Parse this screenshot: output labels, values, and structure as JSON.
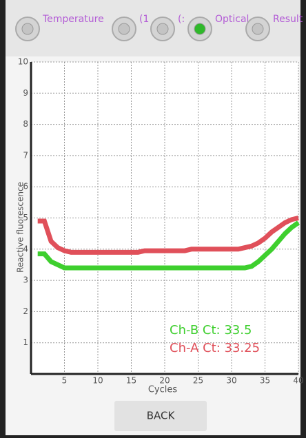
{
  "tabs": [
    {
      "label": "Temperature",
      "selected": false
    },
    {
      "label": "(1",
      "selected": false
    },
    {
      "label": "(:",
      "selected": false
    },
    {
      "label": "Optical",
      "selected": true
    },
    {
      "label": "Result",
      "selected": false
    }
  ],
  "chart_data": {
    "type": "line",
    "xlabel": "Cycles",
    "ylabel": "Reactive fluorescence",
    "x": [
      1,
      2,
      3,
      4,
      5,
      6,
      7,
      8,
      9,
      10,
      11,
      12,
      13,
      14,
      15,
      16,
      17,
      18,
      19,
      20,
      21,
      22,
      23,
      24,
      25,
      26,
      27,
      28,
      29,
      30,
      31,
      32,
      33,
      34,
      35,
      36,
      37,
      38,
      39,
      40
    ],
    "series": [
      {
        "color": "#e0505a",
        "values": [
          4.9,
          4.9,
          4.25,
          4.05,
          3.95,
          3.9,
          3.9,
          3.9,
          3.9,
          3.9,
          3.9,
          3.9,
          3.9,
          3.9,
          3.9,
          3.9,
          3.95,
          3.95,
          3.95,
          3.95,
          3.95,
          3.95,
          3.95,
          4.0,
          4.0,
          4.0,
          4.0,
          4.0,
          4.0,
          4.0,
          4.0,
          4.05,
          4.1,
          4.2,
          4.35,
          4.55,
          4.7,
          4.85,
          4.95,
          5.0
        ]
      },
      {
        "color": "#3ecf2e",
        "values": [
          3.85,
          3.85,
          3.6,
          3.5,
          3.4,
          3.4,
          3.4,
          3.4,
          3.4,
          3.4,
          3.4,
          3.4,
          3.4,
          3.4,
          3.4,
          3.4,
          3.4,
          3.4,
          3.4,
          3.4,
          3.4,
          3.4,
          3.4,
          3.4,
          3.4,
          3.4,
          3.4,
          3.4,
          3.4,
          3.4,
          3.4,
          3.4,
          3.45,
          3.6,
          3.8,
          4.0,
          4.25,
          4.5,
          4.7,
          4.85
        ]
      }
    ],
    "annotations": [
      {
        "text": "Ch-B Ct: 33.5",
        "color": "#3ecf2e"
      },
      {
        "text": "Ch-A Ct: 33.25",
        "color": "#e0505a"
      }
    ],
    "xlim": [
      0,
      40
    ],
    "xticks": [
      5,
      10,
      15,
      20,
      25,
      30,
      35,
      40
    ],
    "ylim": [
      0,
      10
    ],
    "yticks": [
      1,
      2,
      3,
      4,
      5,
      6,
      7,
      8,
      9,
      10
    ],
    "grid": true
  },
  "button": "BACK"
}
